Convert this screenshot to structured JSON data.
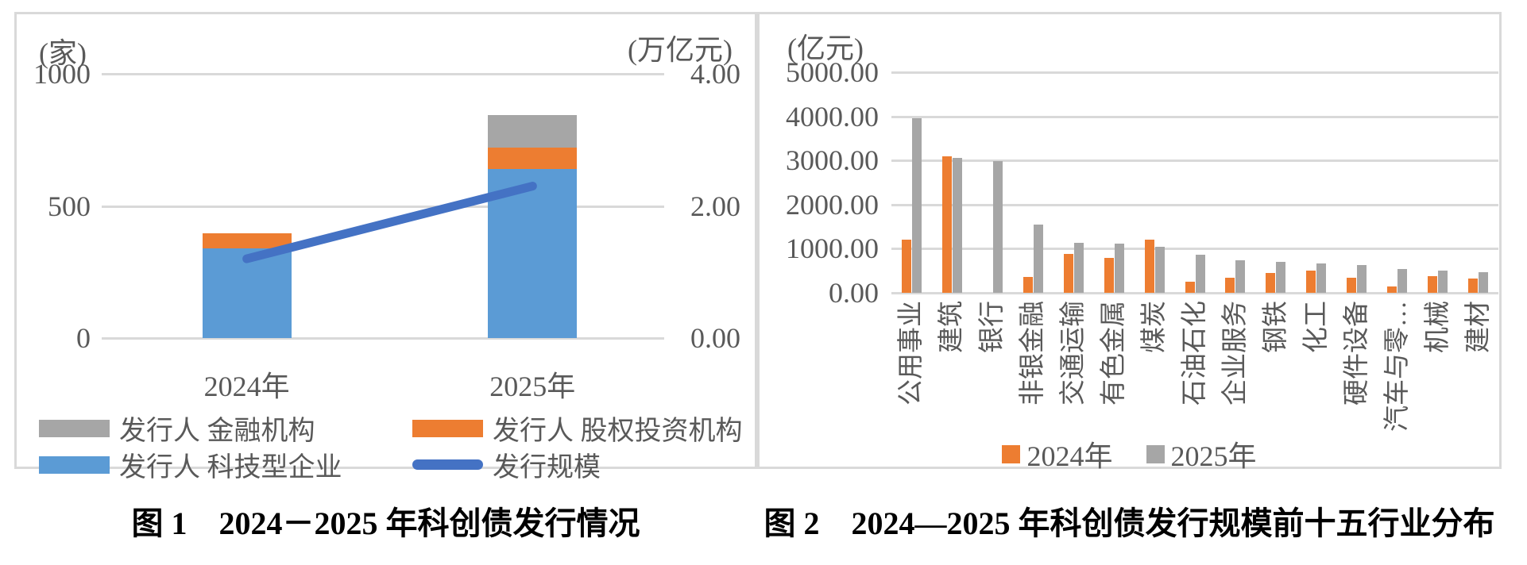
{
  "colors": {
    "bar_blue": "#5B9BD5",
    "bar_orange": "#ED7D31",
    "bar_gray": "#A6A6A6",
    "line_blue": "#4472C4",
    "gridline": "#D9D9D9",
    "axis_text": "#595959",
    "caption_text": "#000000"
  },
  "chart_data": [
    {
      "type": "bar",
      "subtype": "stacked-bar-with-line",
      "title": "图 1　2024－2025 年科创债发行情况",
      "categories": [
        "2024年",
        "2025年"
      ],
      "series": [
        {
          "name": "发行人 科技型企业",
          "kind": "bar",
          "color_key": "bar_blue",
          "values": [
            340,
            640
          ]
        },
        {
          "name": "发行人 股权投资机构",
          "kind": "bar",
          "color_key": "bar_orange",
          "values": [
            55,
            80
          ]
        },
        {
          "name": "发行人 金融机构",
          "kind": "bar",
          "color_key": "bar_gray",
          "values": [
            0,
            125
          ]
        },
        {
          "name": "发行规模",
          "kind": "line",
          "axis": "right",
          "color_key": "line_blue",
          "values": [
            1.2,
            2.3
          ]
        }
      ],
      "left_axis": {
        "unit": "(家)",
        "ticks": [
          0,
          500,
          1000
        ],
        "tick_labels": [
          "0",
          "500",
          "1000"
        ],
        "max": 1000
      },
      "right_axis": {
        "unit": "(万亿元)",
        "ticks": [
          0,
          2,
          4
        ],
        "tick_labels": [
          "0.00",
          "2.00",
          "4.00"
        ],
        "max": 4
      },
      "legend_rows": [
        [
          {
            "label": "发行人 金融机构",
            "swatch": "bar_gray",
            "shape": "rect"
          },
          {
            "label": "发行人 股权投资机构",
            "swatch": "bar_orange",
            "shape": "rect"
          }
        ],
        [
          {
            "label": "发行人 科技型企业",
            "swatch": "bar_blue",
            "shape": "rect"
          },
          {
            "label": "发行规模",
            "swatch": "line_blue",
            "shape": "line"
          }
        ]
      ],
      "grid": true,
      "legend_position": "bottom"
    },
    {
      "type": "bar",
      "subtype": "grouped-bar",
      "title": "图 2　2024—2025 年科创债发行规模前十五行业分布",
      "categories": [
        "公用事业",
        "建筑",
        "银行",
        "非银金融",
        "交通运输",
        "有色金属",
        "煤炭",
        "石油石化",
        "企业服务",
        "钢铁",
        "化工",
        "硬件设备",
        "汽车与零…",
        "机械",
        "建材"
      ],
      "series": [
        {
          "name": "2024年",
          "color_key": "bar_orange",
          "values": [
            1200,
            3090,
            0,
            360,
            880,
            800,
            1200,
            250,
            350,
            450,
            500,
            350,
            150,
            370,
            320
          ]
        },
        {
          "name": "2025年",
          "color_key": "bar_gray",
          "values": [
            3960,
            3060,
            2990,
            1540,
            1130,
            1120,
            1050,
            855,
            745,
            700,
            670,
            630,
            540,
            500,
            465
          ]
        }
      ],
      "y_axis": {
        "unit": "(亿元)",
        "ticks": [
          0,
          1000,
          2000,
          3000,
          4000,
          5000
        ],
        "tick_labels": [
          "0.00",
          "1000.00",
          "2000.00",
          "3000.00",
          "4000.00",
          "5000.00"
        ],
        "max": 5000
      },
      "legend": [
        {
          "label": "2024年",
          "swatch": "bar_orange"
        },
        {
          "label": "2025年",
          "swatch": "bar_gray"
        }
      ],
      "grid": true,
      "legend_position": "bottom"
    }
  ]
}
